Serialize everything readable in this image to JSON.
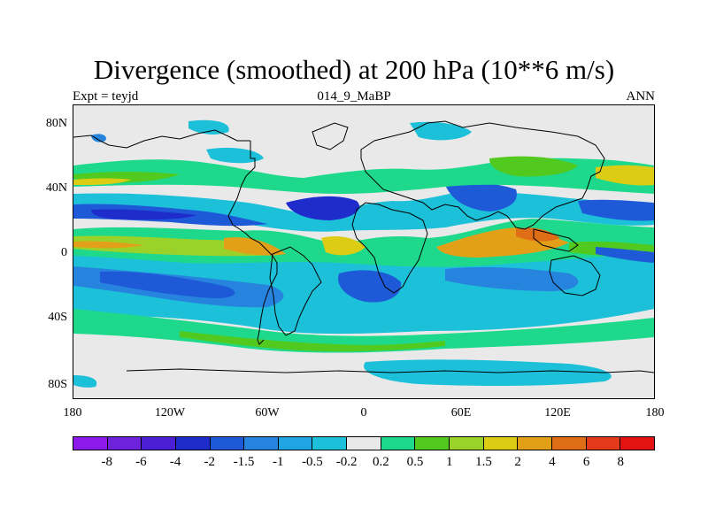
{
  "title": "Divergence (smoothed) at 200 hPa (10**6 m/s)",
  "left_label": "Expt = teyjd",
  "center_label": "014_9_MaBP",
  "right_label": "ANN",
  "lat_ticks": [
    "80N",
    "40N",
    "0",
    "40S",
    "80S"
  ],
  "lon_ticks": [
    "180",
    "120W",
    "60W",
    "0",
    "60E",
    "120E",
    "180"
  ],
  "colorbar": {
    "labels": [
      "-8",
      "-6",
      "-4",
      "-2",
      "-1.5",
      "-1",
      "-0.5",
      "-0.2",
      "0.2",
      "0.5",
      "1",
      "1.5",
      "2",
      "4",
      "6",
      "8"
    ],
    "colors": [
      "#8c1aeb",
      "#6e22dc",
      "#4d1fd4",
      "#1f2ccc",
      "#1e5ad8",
      "#2684de",
      "#1fa5e2",
      "#1cc0d9",
      "#e9e9e9",
      "#1ed98c",
      "#52c91f",
      "#9bd22a",
      "#dccd14",
      "#e2a018",
      "#e06e17",
      "#e23a1a",
      "#e41313"
    ]
  }
}
